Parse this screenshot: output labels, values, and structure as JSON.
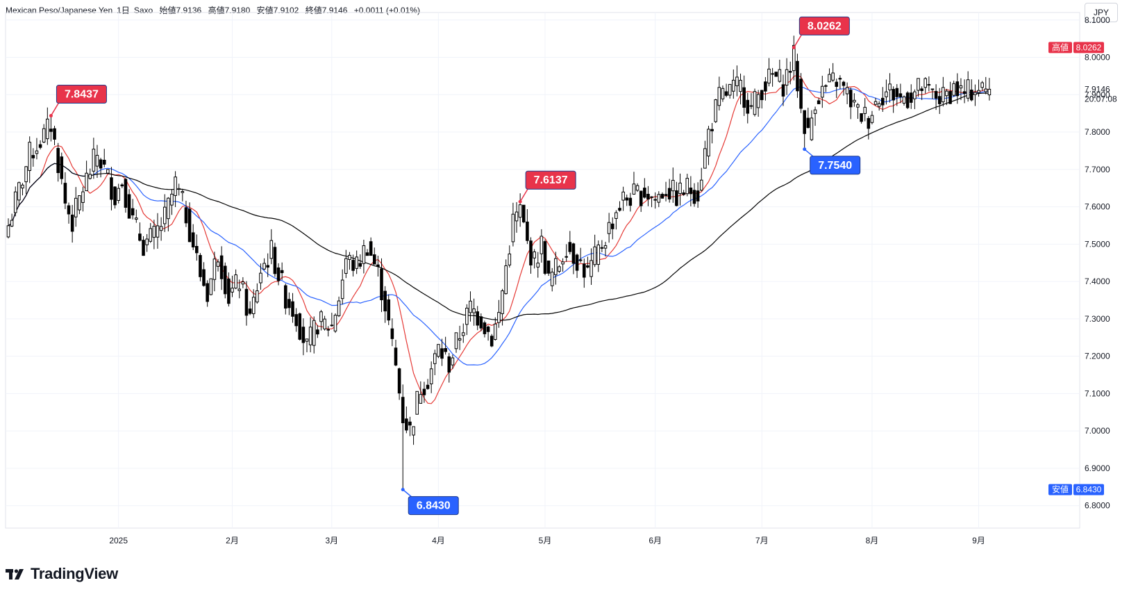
{
  "header": {
    "symbol": "Mexican Peso/Japanese Yen",
    "interval": "1日",
    "source": "Saxo",
    "open": "始値7.9136",
    "high": "高値7.9180",
    "low": "安値7.9102",
    "close": "終値7.9146",
    "change": "+0.0011 (+0.01%)"
  },
  "currency_button": "JPY",
  "footer": {
    "brand": "TradingView"
  },
  "colors": {
    "up_candle": "#ffffff",
    "down_candle": "#000000",
    "ma_fast": "#e53935",
    "ma_mid": "#2962ff",
    "ma_slow": "#000000",
    "high_callout": "#e8334a",
    "low_callout": "#2962ff",
    "grid": "#f0f3fa"
  },
  "chart_data": {
    "type": "candlestick",
    "ylim": [
      6.74,
      8.12
    ],
    "y_ticks": [
      "8.1000",
      "8.0000",
      "7.9000",
      "7.8000",
      "7.7000",
      "7.6000",
      "7.5000",
      "7.4000",
      "7.3000",
      "7.2000",
      "7.1000",
      "7.0000",
      "6.9000",
      "6.8000"
    ],
    "y_tick_values": [
      8.1,
      8.0,
      7.9,
      7.8,
      7.7,
      7.6,
      7.5,
      7.4,
      7.3,
      7.2,
      7.1,
      7.0,
      6.9,
      6.8
    ],
    "x_labels": [
      "2025",
      "2月",
      "3月",
      "4月",
      "5月",
      "6月",
      "7月",
      "8月",
      "9月"
    ],
    "x_label_days": [
      31,
      63,
      91,
      121,
      151,
      182,
      212,
      243,
      273
    ],
    "current_price": {
      "label": "7.9146",
      "value": 7.9146,
      "countdown": "20:07:08"
    },
    "axis_tags": [
      {
        "prefix": "高値",
        "label": "8.0262",
        "value": 8.0262,
        "kind": "high"
      },
      {
        "prefix": "安値",
        "label": "6.8430",
        "value": 6.843,
        "kind": "low"
      }
    ],
    "callouts": [
      {
        "label": "7.8437",
        "day": 12,
        "value": 7.8437,
        "kind": "high"
      },
      {
        "label": "6.8430",
        "day": 111,
        "value": 6.843,
        "kind": "low"
      },
      {
        "label": "7.6137",
        "day": 144,
        "value": 7.6137,
        "kind": "high"
      },
      {
        "label": "8.0262",
        "day": 221,
        "value": 8.0262,
        "kind": "high"
      },
      {
        "label": "7.7540",
        "day": 224,
        "value": 7.754,
        "kind": "low"
      }
    ],
    "key_closes": [
      [
        0,
        7.55
      ],
      [
        6,
        7.74
      ],
      [
        10,
        7.79
      ],
      [
        12,
        7.82
      ],
      [
        14,
        7.72
      ],
      [
        16,
        7.61
      ],
      [
        18,
        7.56
      ],
      [
        21,
        7.65
      ],
      [
        24,
        7.72
      ],
      [
        25,
        7.74
      ],
      [
        27,
        7.7
      ],
      [
        30,
        7.63
      ],
      [
        32,
        7.67
      ],
      [
        35,
        7.56
      ],
      [
        38,
        7.5
      ],
      [
        41,
        7.52
      ],
      [
        44,
        7.57
      ],
      [
        47,
        7.66
      ],
      [
        50,
        7.58
      ],
      [
        54,
        7.42
      ],
      [
        56,
        7.37
      ],
      [
        59,
        7.48
      ],
      [
        62,
        7.36
      ],
      [
        65,
        7.4
      ],
      [
        68,
        7.3
      ],
      [
        71,
        7.43
      ],
      [
        74,
        7.48
      ],
      [
        78,
        7.36
      ],
      [
        81,
        7.31
      ],
      [
        84,
        7.22
      ],
      [
        87,
        7.29
      ],
      [
        91,
        7.28
      ],
      [
        93,
        7.36
      ],
      [
        95,
        7.46
      ],
      [
        98,
        7.44
      ],
      [
        101,
        7.5
      ],
      [
        104,
        7.42
      ],
      [
        106,
        7.34
      ],
      [
        109,
        7.17
      ],
      [
        111,
        7.04
      ],
      [
        113,
        7.0
      ],
      [
        116,
        7.12
      ],
      [
        118,
        7.14
      ],
      [
        121,
        7.22
      ],
      [
        124,
        7.18
      ],
      [
        127,
        7.26
      ],
      [
        130,
        7.33
      ],
      [
        133,
        7.3
      ],
      [
        136,
        7.25
      ],
      [
        138,
        7.31
      ],
      [
        140,
        7.44
      ],
      [
        142,
        7.56
      ],
      [
        144,
        7.59
      ],
      [
        146,
        7.5
      ],
      [
        148,
        7.45
      ],
      [
        150,
        7.5
      ],
      [
        152,
        7.4
      ],
      [
        155,
        7.45
      ],
      [
        157,
        7.5
      ],
      [
        160,
        7.46
      ],
      [
        163,
        7.42
      ],
      [
        166,
        7.48
      ],
      [
        168,
        7.52
      ],
      [
        171,
        7.59
      ],
      [
        173,
        7.62
      ],
      [
        176,
        7.63
      ],
      [
        179,
        7.64
      ],
      [
        182,
        7.62
      ],
      [
        185,
        7.65
      ],
      [
        188,
        7.63
      ],
      [
        191,
        7.65
      ],
      [
        194,
        7.64
      ],
      [
        197,
        7.8
      ],
      [
        200,
        7.89
      ],
      [
        203,
        7.91
      ],
      [
        206,
        7.92
      ],
      [
        209,
        7.86
      ],
      [
        212,
        7.92
      ],
      [
        215,
        7.95
      ],
      [
        218,
        7.93
      ],
      [
        221,
        8.0
      ],
      [
        223,
        7.86
      ],
      [
        225,
        7.79
      ],
      [
        227,
        7.89
      ],
      [
        230,
        7.92
      ],
      [
        233,
        7.94
      ],
      [
        236,
        7.9
      ],
      [
        239,
        7.85
      ],
      [
        242,
        7.84
      ],
      [
        245,
        7.9
      ],
      [
        248,
        7.91
      ],
      [
        251,
        7.89
      ],
      [
        254,
        7.9
      ],
      [
        257,
        7.92
      ],
      [
        260,
        7.9
      ],
      [
        263,
        7.89
      ],
      [
        266,
        7.92
      ],
      [
        269,
        7.9
      ],
      [
        272,
        7.92
      ],
      [
        275,
        7.91
      ],
      [
        276,
        7.9146
      ]
    ]
  }
}
